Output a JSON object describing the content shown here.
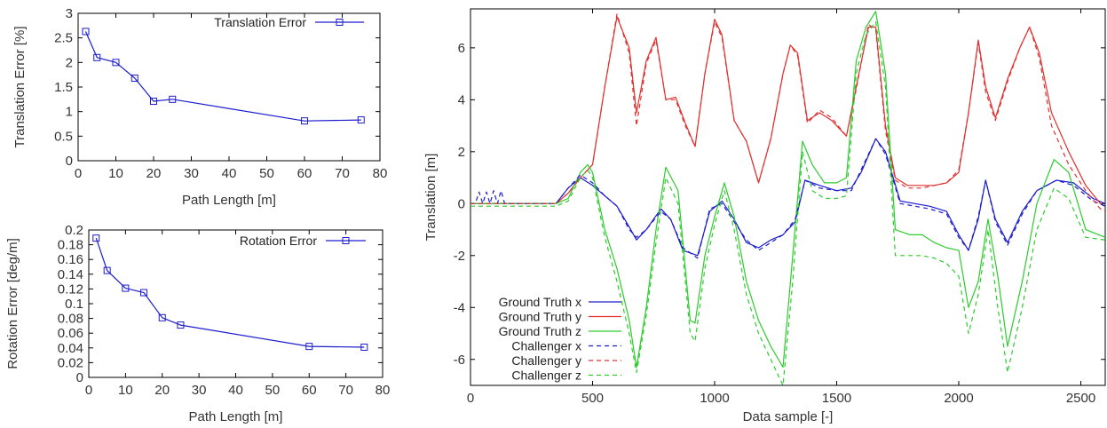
{
  "colors": {
    "blue": "#1c1ccc",
    "red": "#e03030",
    "green": "#2ccc2c"
  },
  "chart_data": [
    {
      "type": "line",
      "xlabel": "Path Length [m]",
      "ylabel": "Translation Error [%]",
      "xlim": [
        0,
        80
      ],
      "ylim": [
        0,
        3
      ],
      "xticks": [
        0,
        10,
        20,
        30,
        40,
        50,
        60,
        70,
        80
      ],
      "yticks": [
        0,
        0.5,
        1,
        1.5,
        2,
        2.5,
        3
      ],
      "ytick_labels": [
        "0",
        "0.5",
        "1",
        "1.5",
        "2",
        "2.5",
        "3"
      ],
      "legend_position": "top-right",
      "series": [
        {
          "name": "Translation Error",
          "x": [
            2,
            5,
            10,
            15,
            20,
            25,
            60,
            75
          ],
          "y": [
            2.63,
            2.1,
            2.0,
            1.68,
            1.21,
            1.25,
            0.81,
            0.83
          ]
        }
      ]
    },
    {
      "type": "line",
      "xlabel": "Path Length [m]",
      "ylabel": "Rotation Error [deg/m]",
      "xlim": [
        0,
        80
      ],
      "ylim": [
        0,
        0.2
      ],
      "xticks": [
        0,
        10,
        20,
        30,
        40,
        50,
        60,
        70,
        80
      ],
      "yticks": [
        0,
        0.02,
        0.04,
        0.06,
        0.08,
        0.1,
        0.12,
        0.14,
        0.16,
        0.18,
        0.2
      ],
      "ytick_labels": [
        "0",
        "0.02",
        "0.04",
        "0.06",
        "0.08",
        "0.1",
        "0.12",
        "0.14",
        "0.16",
        "0.18",
        "0.2"
      ],
      "legend_position": "top-right",
      "series": [
        {
          "name": "Rotation Error",
          "x": [
            2,
            5,
            10,
            15,
            20,
            25,
            60,
            75
          ],
          "y": [
            0.189,
            0.145,
            0.121,
            0.115,
            0.081,
            0.071,
            0.042,
            0.041
          ]
        }
      ]
    },
    {
      "type": "line",
      "xlabel": "Data sample [-]",
      "ylabel": "Translation [m]",
      "xlim": [
        0,
        2600
      ],
      "ylim": [
        -7,
        7.5
      ],
      "xticks": [
        0,
        500,
        1000,
        1500,
        2000,
        2500
      ],
      "yticks": [
        -6,
        -4,
        -2,
        0,
        2,
        4,
        6
      ],
      "legend_position": "bottom-left",
      "series": [
        {
          "name": "Ground Truth x",
          "color": "blue",
          "dashed": false,
          "x": [
            0,
            350,
            400,
            450,
            500,
            550,
            600,
            650,
            680,
            720,
            780,
            820,
            870,
            930,
            980,
            1030,
            1080,
            1130,
            1180,
            1230,
            1280,
            1330,
            1370,
            1430,
            1500,
            1560,
            1600,
            1660,
            1700,
            1760,
            1820,
            1880,
            1950,
            2000,
            2040,
            2080,
            2110,
            2150,
            2200,
            2260,
            2320,
            2400,
            2470,
            2550,
            2600
          ],
          "y": [
            0,
            0,
            0.6,
            1.0,
            0.7,
            0.3,
            -0.1,
            -0.9,
            -1.4,
            -1.0,
            -0.2,
            -0.6,
            -1.8,
            -2.0,
            -0.3,
            0.1,
            -0.6,
            -1.5,
            -1.7,
            -1.4,
            -1.2,
            -0.7,
            0.9,
            0.7,
            0.5,
            0.6,
            1.2,
            2.5,
            2.0,
            0.1,
            0.0,
            -0.1,
            -0.3,
            -1.2,
            -1.8,
            -0.6,
            0.9,
            -0.6,
            -1.5,
            -0.3,
            0.5,
            0.9,
            0.8,
            0.2,
            0.0
          ]
        },
        {
          "name": "Ground Truth y",
          "color": "red",
          "dashed": false,
          "x": [
            0,
            350,
            400,
            450,
            500,
            550,
            600,
            650,
            680,
            720,
            760,
            800,
            840,
            880,
            920,
            960,
            1000,
            1030,
            1080,
            1130,
            1180,
            1230,
            1280,
            1310,
            1340,
            1380,
            1430,
            1480,
            1540,
            1580,
            1630,
            1660,
            1700,
            1740,
            1790,
            1850,
            1900,
            1950,
            2000,
            2040,
            2080,
            2110,
            2150,
            2200,
            2250,
            2290,
            2330,
            2380,
            2450,
            2520,
            2580,
            2600
          ],
          "y": [
            0,
            0,
            0.4,
            1.0,
            1.5,
            4.5,
            7.2,
            6.0,
            3.5,
            5.5,
            6.4,
            4.0,
            4.1,
            3.1,
            2.2,
            5.0,
            7.1,
            6.5,
            3.2,
            2.4,
            0.8,
            2.5,
            5.0,
            6.1,
            5.8,
            3.2,
            3.5,
            3.2,
            2.6,
            4.5,
            6.8,
            6.8,
            3.0,
            1.0,
            0.7,
            0.7,
            0.7,
            0.8,
            1.2,
            3.5,
            6.3,
            4.5,
            3.3,
            4.8,
            6.0,
            6.8,
            5.8,
            3.5,
            2.0,
            0.7,
            0.0,
            -0.1
          ]
        },
        {
          "name": "Ground Truth z",
          "color": "green",
          "dashed": false,
          "x": [
            0,
            350,
            400,
            450,
            480,
            500,
            550,
            600,
            650,
            680,
            720,
            760,
            800,
            850,
            900,
            920,
            960,
            1000,
            1040,
            1080,
            1130,
            1180,
            1230,
            1280,
            1320,
            1360,
            1400,
            1450,
            1500,
            1540,
            1580,
            1620,
            1660,
            1700,
            1740,
            1800,
            1850,
            1900,
            1950,
            2000,
            2040,
            2080,
            2120,
            2160,
            2200,
            2260,
            2320,
            2390,
            2450,
            2520,
            2600
          ],
          "y": [
            0,
            0,
            0.2,
            1.2,
            1.5,
            1.2,
            -1.0,
            -2.5,
            -4.5,
            -6.3,
            -4.0,
            -1.0,
            1.4,
            0.5,
            -4.5,
            -4.6,
            -2.0,
            -0.5,
            0.8,
            -0.5,
            -3.0,
            -4.5,
            -5.5,
            -6.3,
            -2.0,
            2.4,
            1.5,
            0.8,
            0.8,
            1.0,
            5.5,
            6.8,
            7.4,
            5.0,
            -1.0,
            -1.2,
            -1.2,
            -1.5,
            -1.7,
            -1.8,
            -4.0,
            -3.0,
            -0.6,
            -2.8,
            -5.5,
            -3.0,
            0.0,
            1.7,
            1.2,
            -1.0,
            -1.3
          ]
        },
        {
          "name": "Challenger x",
          "color": "blue",
          "dashed": true,
          "x": [
            0,
            20,
            35,
            50,
            65,
            80,
            95,
            110,
            125,
            140,
            160,
            350,
            400,
            450,
            500,
            550,
            600,
            650,
            680,
            720,
            780,
            820,
            870,
            930,
            980,
            1030,
            1080,
            1130,
            1180,
            1230,
            1280,
            1330,
            1370,
            1430,
            1500,
            1560,
            1600,
            1660,
            1700,
            1760,
            1820,
            1880,
            1950,
            2000,
            2040,
            2080,
            2110,
            2150,
            2200,
            2260,
            2320,
            2400,
            2470,
            2550,
            2600
          ],
          "y": [
            0,
            0,
            0.45,
            0,
            0.45,
            0,
            0.5,
            0,
            0.5,
            0,
            0,
            0,
            0.6,
            1.1,
            0.8,
            0.3,
            -0.1,
            -1.0,
            -1.3,
            -1.0,
            -0.3,
            -0.6,
            -1.7,
            -2.1,
            -0.2,
            0.0,
            -0.7,
            -1.4,
            -1.8,
            -1.5,
            -1.2,
            -0.6,
            0.9,
            0.6,
            0.5,
            0.5,
            1.3,
            2.5,
            1.9,
            0.0,
            -0.1,
            -0.2,
            -0.4,
            -1.3,
            -1.8,
            -0.5,
            0.9,
            -0.7,
            -1.6,
            -0.4,
            0.5,
            0.9,
            0.7,
            0.1,
            -0.1
          ]
        },
        {
          "name": "Challenger y",
          "color": "red",
          "dashed": true,
          "x": [
            0,
            350,
            400,
            450,
            500,
            550,
            600,
            650,
            680,
            720,
            760,
            800,
            840,
            880,
            920,
            960,
            1000,
            1030,
            1080,
            1130,
            1180,
            1230,
            1280,
            1310,
            1340,
            1380,
            1430,
            1480,
            1540,
            1580,
            1630,
            1660,
            1700,
            1740,
            1790,
            1850,
            1900,
            1950,
            2000,
            2040,
            2080,
            2110,
            2150,
            2200,
            2250,
            2290,
            2330,
            2380,
            2450,
            2520,
            2580,
            2600
          ],
          "y": [
            0,
            0,
            0.4,
            1.0,
            1.5,
            4.5,
            7.3,
            5.8,
            3.0,
            5.4,
            6.3,
            4.0,
            4.0,
            3.0,
            2.2,
            5.0,
            7.0,
            6.4,
            3.2,
            2.4,
            0.8,
            2.5,
            5.0,
            6.1,
            5.7,
            3.1,
            3.6,
            3.3,
            2.6,
            4.4,
            6.9,
            6.7,
            2.8,
            0.9,
            0.6,
            0.6,
            0.7,
            0.8,
            1.3,
            3.5,
            6.2,
            4.3,
            3.2,
            4.7,
            6.0,
            6.8,
            5.6,
            3.0,
            1.5,
            0.5,
            -0.2,
            -0.3
          ]
        },
        {
          "name": "Challenger z",
          "color": "green",
          "dashed": true,
          "x": [
            0,
            350,
            400,
            450,
            480,
            500,
            550,
            600,
            650,
            680,
            720,
            760,
            800,
            850,
            900,
            920,
            960,
            1000,
            1040,
            1080,
            1130,
            1180,
            1230,
            1280,
            1320,
            1360,
            1400,
            1450,
            1500,
            1540,
            1580,
            1620,
            1660,
            1700,
            1740,
            1800,
            1850,
            1900,
            1950,
            2000,
            2040,
            2080,
            2120,
            2160,
            2200,
            2260,
            2320,
            2390,
            2450,
            2520,
            2600
          ],
          "y": [
            -0.1,
            -0.1,
            0.1,
            1.0,
            1.3,
            1.0,
            -1.3,
            -3.0,
            -5.0,
            -6.5,
            -4.3,
            -1.5,
            1.0,
            0.0,
            -5.0,
            -5.3,
            -2.5,
            -0.8,
            0.5,
            -1.0,
            -3.5,
            -5.0,
            -6.0,
            -7.0,
            -3.0,
            2.0,
            0.5,
            0.2,
            0.2,
            0.3,
            5.0,
            6.5,
            7.0,
            4.5,
            -2.0,
            -2.0,
            -2.0,
            -2.1,
            -2.3,
            -2.8,
            -5.0,
            -3.5,
            -1.0,
            -4.0,
            -6.5,
            -4.0,
            -1.0,
            0.6,
            0.2,
            -1.3,
            -1.4
          ]
        }
      ]
    }
  ]
}
